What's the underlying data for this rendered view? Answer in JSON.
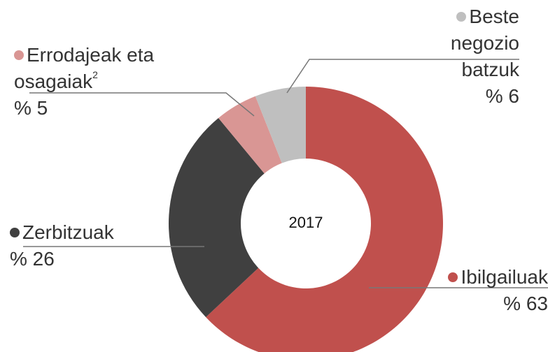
{
  "chart_data": {
    "type": "donut",
    "center_label": "2017",
    "categories": [
      "Ibilgailuak",
      "Zerbitzuak",
      "Errodajeak eta osagaiak",
      "Beste negozio batzuk"
    ],
    "footnotes": [
      null,
      null,
      "2",
      null
    ],
    "values": [
      63,
      26,
      5,
      6
    ],
    "value_labels": [
      "% 63",
      "% 26",
      "% 5",
      "% 6"
    ],
    "colors": [
      "#c0504d",
      "#404040",
      "#d99694",
      "#bfbfbf"
    ]
  }
}
